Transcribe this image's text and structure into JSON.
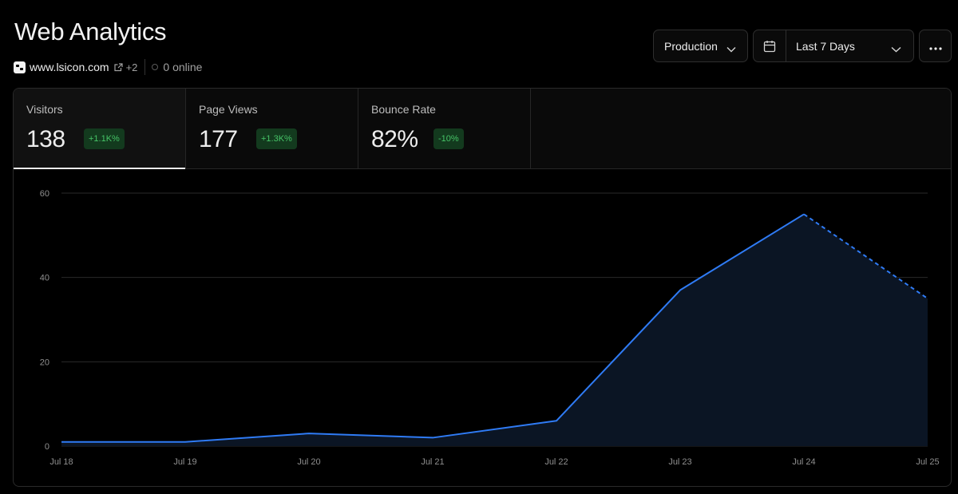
{
  "header": {
    "title": "Web Analytics",
    "site": "www.lsicon.com",
    "site_extra": "+2",
    "online": "0 online"
  },
  "toolbar": {
    "environment": "Production",
    "date_range": "Last 7 Days",
    "icons": [
      "calendar-icon",
      "more-icon",
      "chevron-down-icon"
    ]
  },
  "metrics": [
    {
      "label": "Visitors",
      "value": "138",
      "change": "+1.1K%"
    },
    {
      "label": "Page Views",
      "value": "177",
      "change": "+1.3K%"
    },
    {
      "label": "Bounce Rate",
      "value": "82%",
      "change": "-10%"
    }
  ],
  "colors": {
    "line": "#2f7bf5",
    "area": "#0b1524",
    "badge_bg": "#133a1e",
    "badge_text": "#46c367"
  },
  "chart_data": {
    "type": "area",
    "x": [
      "Jul 18",
      "Jul 19",
      "Jul 20",
      "Jul 21",
      "Jul 22",
      "Jul 23",
      "Jul 24",
      "Jul 25"
    ],
    "y_ticks": [
      0,
      20,
      40,
      60
    ],
    "ylim": [
      0,
      60
    ],
    "series": [
      {
        "values": [
          1,
          1,
          3,
          2,
          6,
          37,
          55,
          35
        ]
      }
    ],
    "projected_from_index": 6,
    "grid": true
  }
}
